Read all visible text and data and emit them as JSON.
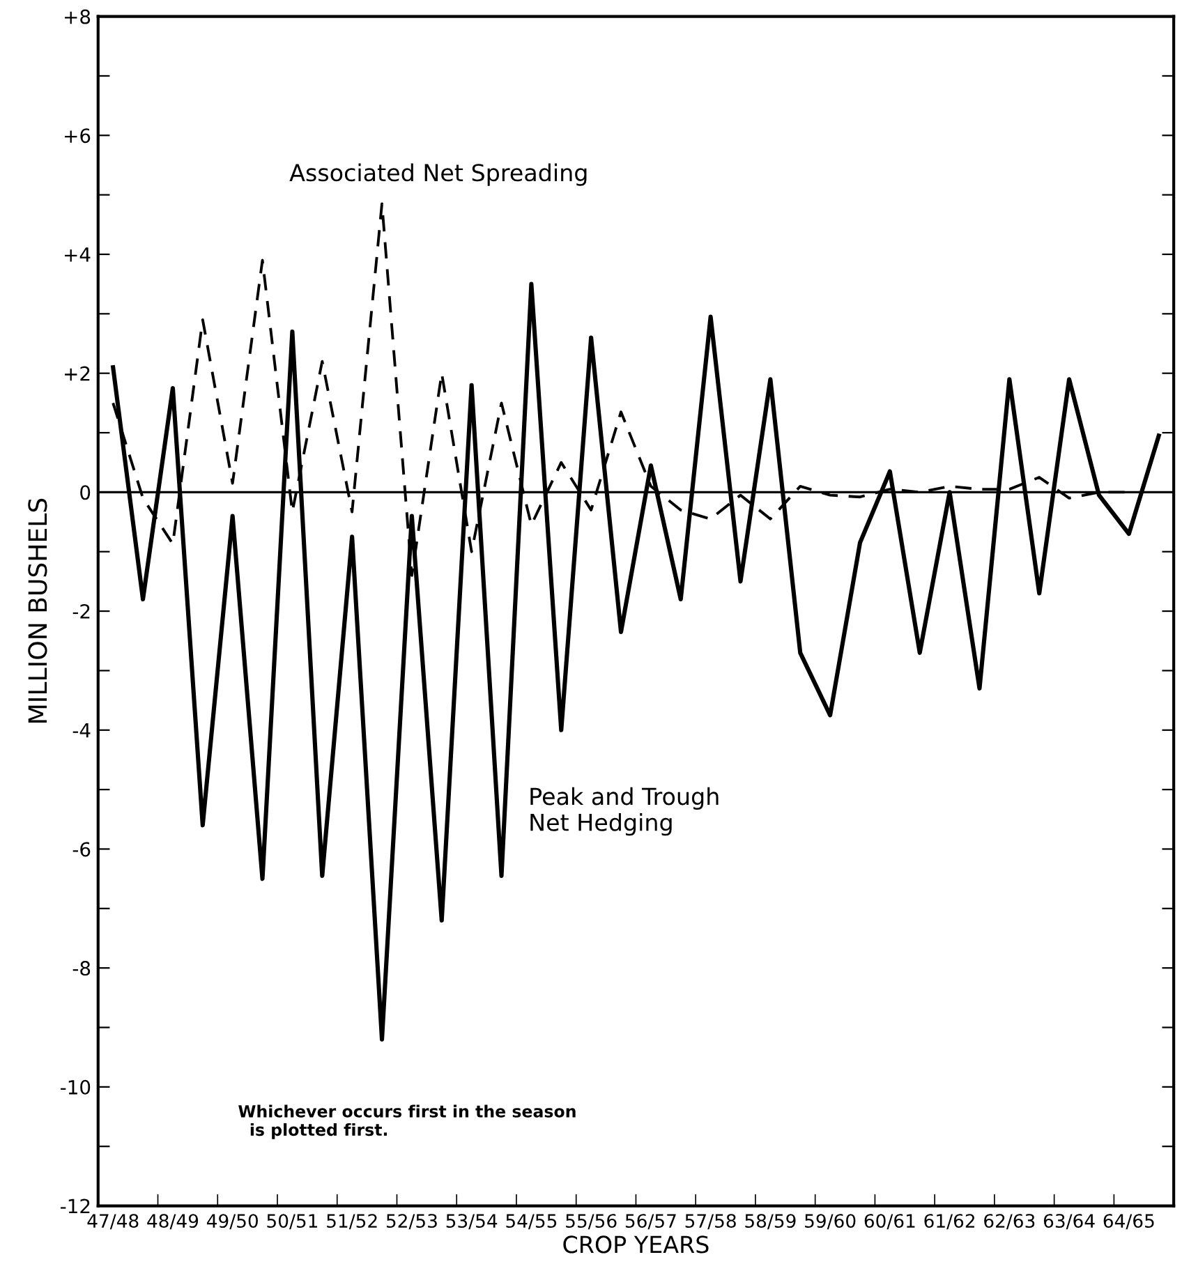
{
  "chart_data": {
    "type": "line",
    "xlabel": "CROP YEARS",
    "ylabel": "MILLION BUSHELS",
    "categories": [
      "47/48",
      null,
      "48/49",
      null,
      "49/50",
      null,
      "50/51",
      null,
      "51/52",
      null,
      "52/53",
      null,
      "53/54",
      null,
      "54/55",
      null,
      "55/56",
      null,
      "56/57",
      null,
      "57/58",
      null,
      "58/59",
      null,
      "59/60",
      null,
      "60/61",
      null,
      "61/62",
      null,
      "62/63",
      null,
      "63/64",
      null,
      "64/65",
      null
    ],
    "series": [
      {
        "name": "Peak and Trough\nNet Hedging",
        "color": "#000000",
        "line_style": "solid",
        "values": [
          2.1,
          -1.8,
          1.75,
          -5.6,
          -0.4,
          -6.5,
          2.7,
          -6.45,
          -0.75,
          -9.2,
          -0.4,
          -7.2,
          1.8,
          -6.45,
          3.5,
          -4.0,
          2.6,
          -2.35,
          0.45,
          -1.8,
          2.95,
          -1.5,
          1.9,
          -2.7,
          -3.75,
          -0.85,
          0.35,
          -2.7,
          0.0,
          -3.3,
          1.9,
          -1.7,
          1.9,
          -0.05,
          -0.7,
          0.95
        ]
      },
      {
        "name": "Associated Net Spreading",
        "color": "#000000",
        "line_style": "dashed",
        "values": [
          1.5,
          -0.1,
          -0.87,
          2.9,
          0.15,
          3.9,
          -0.33,
          2.2,
          -0.33,
          4.85,
          -1.4,
          2.0,
          -1.0,
          1.5,
          -0.55,
          0.5,
          -0.3,
          1.35,
          0.1,
          -0.3,
          -0.45,
          -0.05,
          -0.45,
          0.1,
          -0.05,
          -0.08,
          0.05,
          0.0,
          0.1,
          0.05,
          0.05,
          0.25,
          -0.1,
          0.0,
          0.0,
          null
        ]
      }
    ],
    "ylim": [
      -12,
      8
    ],
    "yticks": [
      {
        "value": 8,
        "label": "+8"
      },
      {
        "value": 7,
        "label": null
      },
      {
        "value": 6,
        "label": "+6"
      },
      {
        "value": 5,
        "label": null
      },
      {
        "value": 4,
        "label": "+4"
      },
      {
        "value": 3,
        "label": null
      },
      {
        "value": 2,
        "label": "+2"
      },
      {
        "value": 1,
        "label": null
      },
      0,
      {
        "value": -1,
        "label": null
      },
      -2,
      {
        "value": -3,
        "label": null
      },
      -4,
      {
        "value": -5,
        "label": null
      },
      -6,
      {
        "value": -7,
        "label": null
      },
      -8,
      {
        "value": -9,
        "label": null
      },
      -10,
      {
        "value": -11,
        "label": null
      },
      -12
    ],
    "ref_lines": [
      {
        "axis": "y",
        "value": 0,
        "color": "#000000",
        "line_style": "solid"
      }
    ],
    "annotations": [
      "Whichever occurs first in the season\n  is plotted first."
    ],
    "grid": false,
    "legend": false,
    "marker": "none"
  }
}
